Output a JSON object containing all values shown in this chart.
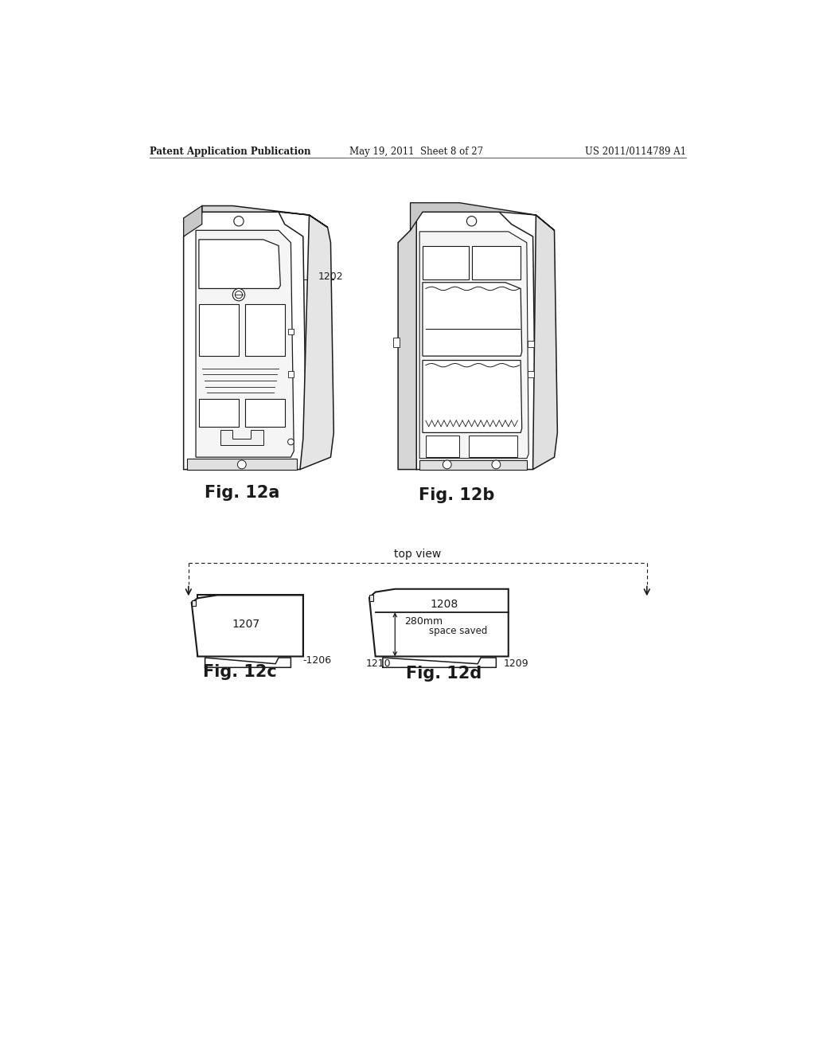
{
  "bg_color": "#ffffff",
  "lc": "#1a1a1a",
  "header_left": "Patent Application Publication",
  "header_mid": "May 19, 2011  Sheet 8 of 27",
  "header_right": "US 2011/0114789 A1",
  "fig_labels": [
    "Fig. 12a",
    "Fig. 12b",
    "Fig. 12c",
    "Fig. 12d"
  ],
  "top_view_label": "top view"
}
